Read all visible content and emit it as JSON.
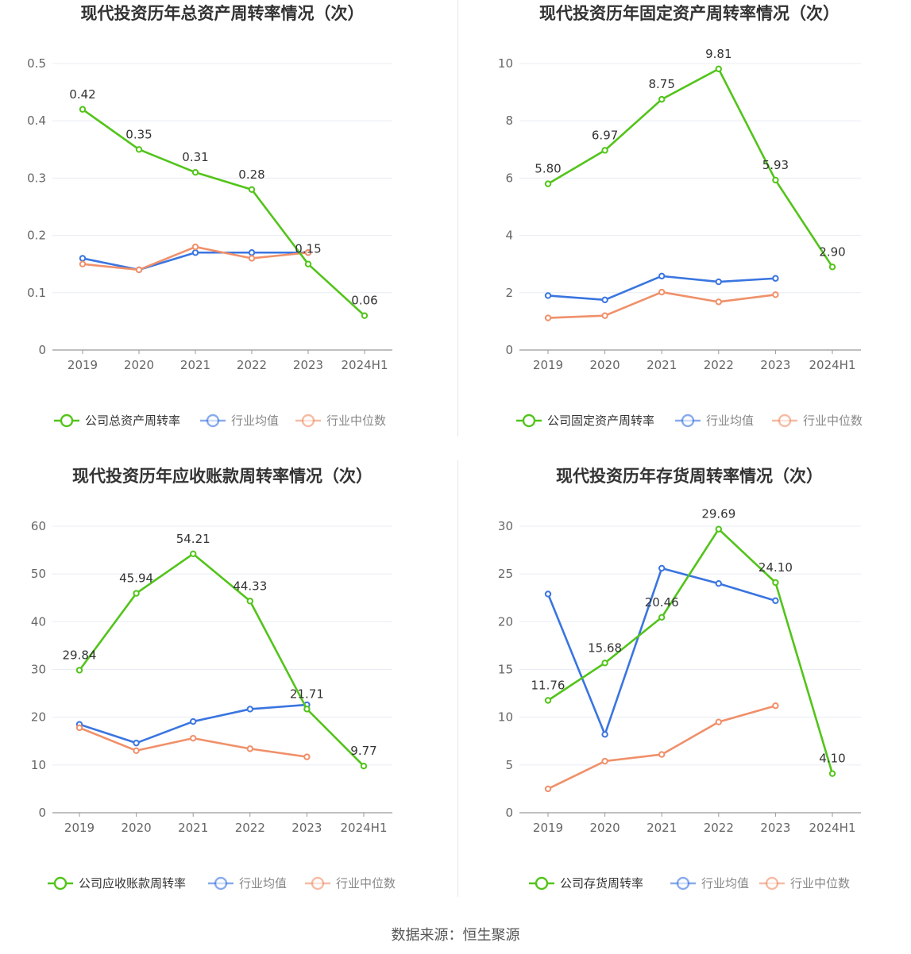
{
  "colors": {
    "company": "#52c41a",
    "avg": "#3a75e0",
    "median": "#f0906a",
    "grid": "#e8ecf5",
    "axis": "#999999"
  },
  "source_text": "数据来源：恒生聚源",
  "chart_data": [
    {
      "type": "line",
      "title": "现代投资历年总资产周转率情况（次）",
      "categories": [
        "2019",
        "2020",
        "2021",
        "2022",
        "2023",
        "2024H1"
      ],
      "ylim": [
        0,
        0.5
      ],
      "yticks": [
        "0",
        "0.1",
        "0.2",
        "0.3",
        "0.4",
        "0.5"
      ],
      "grid": true,
      "legend_position": "bottom",
      "series": [
        {
          "name": "公司总资产周转率",
          "role": "company",
          "values": [
            0.42,
            0.35,
            0.31,
            0.28,
            0.15,
            0.06
          ],
          "labels": [
            "0.42",
            "0.35",
            "0.31",
            "0.28",
            "0.15",
            "0.06"
          ]
        },
        {
          "name": "行业均值",
          "role": "avg",
          "values": [
            0.16,
            0.14,
            0.17,
            0.17,
            0.17,
            null
          ]
        },
        {
          "name": "行业中位数",
          "role": "median",
          "values": [
            0.15,
            0.14,
            0.18,
            0.16,
            0.17,
            null
          ]
        }
      ]
    },
    {
      "type": "line",
      "title": "现代投资历年固定资产周转率情况（次）",
      "categories": [
        "2019",
        "2020",
        "2021",
        "2022",
        "2023",
        "2024H1"
      ],
      "ylim": [
        0,
        10
      ],
      "yticks": [
        "0",
        "2",
        "4",
        "6",
        "8",
        "10"
      ],
      "grid": true,
      "legend_position": "bottom",
      "series": [
        {
          "name": "公司固定资产周转率",
          "role": "company",
          "values": [
            5.8,
            6.97,
            8.75,
            9.81,
            5.93,
            2.9
          ],
          "labels": [
            "5.80",
            "6.97",
            "8.75",
            "9.81",
            "5.93",
            "2.90"
          ]
        },
        {
          "name": "行业均值",
          "role": "avg",
          "values": [
            1.9,
            1.75,
            2.58,
            2.38,
            2.5,
            null
          ]
        },
        {
          "name": "行业中位数",
          "role": "median",
          "values": [
            1.12,
            1.2,
            2.02,
            1.68,
            1.93,
            null
          ]
        }
      ]
    },
    {
      "type": "line",
      "title": "现代投资历年应收账款周转率情况（次）",
      "categories": [
        "2019",
        "2020",
        "2021",
        "2022",
        "2023",
        "2024H1"
      ],
      "ylim": [
        0,
        60
      ],
      "yticks": [
        "0",
        "10",
        "20",
        "30",
        "40",
        "50",
        "60"
      ],
      "grid": true,
      "legend_position": "bottom",
      "series": [
        {
          "name": "公司应收账款周转率",
          "role": "company",
          "values": [
            29.84,
            45.94,
            54.21,
            44.33,
            21.71,
            9.77
          ],
          "labels": [
            "29.84",
            "45.94",
            "54.21",
            "44.33",
            "21.71",
            "9.77"
          ]
        },
        {
          "name": "行业均值",
          "role": "avg",
          "values": [
            18.5,
            14.6,
            19.1,
            21.7,
            22.6,
            null
          ]
        },
        {
          "name": "行业中位数",
          "role": "median",
          "values": [
            17.8,
            13.0,
            15.6,
            13.4,
            11.7,
            null
          ]
        }
      ]
    },
    {
      "type": "line",
      "title": "现代投资历年存货周转率情况（次）",
      "categories": [
        "2019",
        "2020",
        "2021",
        "2022",
        "2023",
        "2024H1"
      ],
      "ylim": [
        0,
        30
      ],
      "yticks": [
        "0",
        "5",
        "10",
        "15",
        "20",
        "25",
        "30"
      ],
      "grid": true,
      "legend_position": "bottom",
      "series": [
        {
          "name": "公司存货周转率",
          "role": "company",
          "values": [
            11.76,
            15.68,
            20.46,
            29.69,
            24.1,
            4.1
          ],
          "labels": [
            "11.76",
            "15.68",
            "20.46",
            "29.69",
            "24.10",
            "4.10"
          ]
        },
        {
          "name": "行业均值",
          "role": "avg",
          "values": [
            22.9,
            8.2,
            25.6,
            24.0,
            22.2,
            null
          ]
        },
        {
          "name": "行业中位数",
          "role": "median",
          "values": [
            2.5,
            5.4,
            6.1,
            9.5,
            11.2,
            null
          ]
        }
      ]
    }
  ]
}
